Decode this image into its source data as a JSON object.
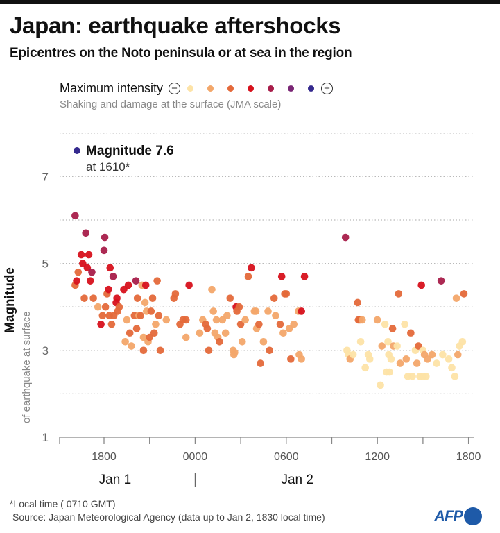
{
  "header": {
    "title": "Japan: earthquake aftershocks",
    "subtitle": "Epicentres on the Noto peninsula or at sea in the region"
  },
  "legend": {
    "title": "Maximum intensity",
    "minus_icon": "minus-circle-icon",
    "plus_icon": "plus-circle-icon",
    "note": "Shaking and damage at the surface (JMA scale)",
    "colors": [
      "#fde3a7",
      "#f3a76a",
      "#e4693a",
      "#d7111c",
      "#a81d4a",
      "#7a2675",
      "#352a8e"
    ]
  },
  "annotation": {
    "title": "Magnitude 7.6",
    "subtitle": "at 1610*",
    "color": "#352a8e"
  },
  "footer": {
    "footnote": "*Local time ( 0710 GMT)",
    "source": "Source: Japan Meteorological Agency (data up to Jan 2, 1830 local time)",
    "logo": "AFP"
  },
  "chart_data": {
    "type": "scatter",
    "title": "Japan: earthquake aftershocks",
    "ylabel": "Magnitude",
    "ylabel_sub": "of earthquake at surface",
    "xlabel": "",
    "ylim": [
      1,
      8
    ],
    "yticks": [
      1,
      3,
      5,
      7
    ],
    "ygrid": [
      2,
      3,
      4,
      5,
      6,
      7,
      8
    ],
    "xlim_hours": [
      15.2,
      42.6
    ],
    "x_unit": "hours since Jan 1 0000 local time",
    "xticks": [
      {
        "h": 15.333,
        "label": ""
      },
      {
        "h": 18,
        "label": "1800"
      },
      {
        "h": 21,
        "label": ""
      },
      {
        "h": 24,
        "label": "0000"
      },
      {
        "h": 27,
        "label": ""
      },
      {
        "h": 30,
        "label": "0600"
      },
      {
        "h": 33,
        "label": ""
      },
      {
        "h": 36,
        "label": "1200"
      },
      {
        "h": 39,
        "label": ""
      },
      {
        "h": 42,
        "label": "1800"
      }
    ],
    "day_labels": [
      {
        "h": 19.0,
        "label": "Jan 1"
      },
      {
        "h": 31.0,
        "label": "Jan 2"
      }
    ],
    "day_divider_h": 24,
    "grid": true,
    "legend_position": "top-left",
    "color_scale": "JMA maximum intensity, classes 1 (lowest) to 7 (highest)",
    "mainshock": {
      "time": "1610",
      "magnitude": 7.6,
      "intensity_class": 7
    },
    "points": [
      {
        "h": 16.1,
        "m": 6.1,
        "i": 5
      },
      {
        "h": 16.1,
        "m": 4.5,
        "i": 3
      },
      {
        "h": 16.2,
        "m": 4.6,
        "i": 4
      },
      {
        "h": 16.3,
        "m": 4.8,
        "i": 3
      },
      {
        "h": 16.5,
        "m": 5.2,
        "i": 4
      },
      {
        "h": 16.6,
        "m": 5.0,
        "i": 4
      },
      {
        "h": 16.7,
        "m": 4.2,
        "i": 3
      },
      {
        "h": 16.8,
        "m": 5.7,
        "i": 5
      },
      {
        "h": 16.9,
        "m": 4.9,
        "i": 4
      },
      {
        "h": 17.0,
        "m": 5.2,
        "i": 4
      },
      {
        "h": 17.1,
        "m": 4.6,
        "i": 4
      },
      {
        "h": 17.2,
        "m": 4.8,
        "i": 5
      },
      {
        "h": 17.3,
        "m": 4.2,
        "i": 3
      },
      {
        "h": 17.6,
        "m": 4.0,
        "i": 2
      },
      {
        "h": 17.8,
        "m": 3.6,
        "i": 4
      },
      {
        "h": 17.9,
        "m": 3.8,
        "i": 3
      },
      {
        "h": 18.0,
        "m": 5.3,
        "i": 5
      },
      {
        "h": 18.05,
        "m": 5.6,
        "i": 5
      },
      {
        "h": 18.1,
        "m": 4.0,
        "i": 3
      },
      {
        "h": 18.2,
        "m": 4.3,
        "i": 3
      },
      {
        "h": 18.3,
        "m": 4.4,
        "i": 4
      },
      {
        "h": 18.35,
        "m": 3.8,
        "i": 3
      },
      {
        "h": 18.4,
        "m": 4.9,
        "i": 4
      },
      {
        "h": 18.5,
        "m": 3.6,
        "i": 3
      },
      {
        "h": 18.6,
        "m": 4.7,
        "i": 5
      },
      {
        "h": 18.65,
        "m": 3.8,
        "i": 3
      },
      {
        "h": 18.8,
        "m": 4.1,
        "i": 4
      },
      {
        "h": 18.85,
        "m": 4.2,
        "i": 4
      },
      {
        "h": 18.9,
        "m": 3.9,
        "i": 3
      },
      {
        "h": 19.0,
        "m": 4.0,
        "i": 3
      },
      {
        "h": 19.3,
        "m": 4.4,
        "i": 4
      },
      {
        "h": 19.4,
        "m": 3.2,
        "i": 2
      },
      {
        "h": 19.5,
        "m": 3.7,
        "i": 2
      },
      {
        "h": 19.6,
        "m": 4.5,
        "i": 4
      },
      {
        "h": 19.7,
        "m": 3.4,
        "i": 3
      },
      {
        "h": 19.8,
        "m": 3.1,
        "i": 2
      },
      {
        "h": 20.0,
        "m": 3.8,
        "i": 3
      },
      {
        "h": 20.1,
        "m": 4.6,
        "i": 5
      },
      {
        "h": 20.15,
        "m": 3.5,
        "i": 3
      },
      {
        "h": 20.2,
        "m": 4.2,
        "i": 3
      },
      {
        "h": 20.3,
        "m": 3.8,
        "i": 2
      },
      {
        "h": 20.4,
        "m": 3.8,
        "i": 3
      },
      {
        "h": 20.5,
        "m": 4.5,
        "i": 2
      },
      {
        "h": 20.6,
        "m": 3.3,
        "i": 2
      },
      {
        "h": 20.6,
        "m": 3.0,
        "i": 3
      },
      {
        "h": 20.7,
        "m": 4.1,
        "i": 2
      },
      {
        "h": 20.75,
        "m": 4.5,
        "i": 4
      },
      {
        "h": 20.8,
        "m": 3.9,
        "i": 2
      },
      {
        "h": 20.9,
        "m": 3.2,
        "i": 2
      },
      {
        "h": 21.0,
        "m": 3.3,
        "i": 3
      },
      {
        "h": 21.1,
        "m": 3.9,
        "i": 3
      },
      {
        "h": 21.2,
        "m": 4.2,
        "i": 3
      },
      {
        "h": 21.3,
        "m": 3.4,
        "i": 3
      },
      {
        "h": 21.4,
        "m": 3.6,
        "i": 2
      },
      {
        "h": 21.5,
        "m": 4.6,
        "i": 3
      },
      {
        "h": 21.6,
        "m": 3.8,
        "i": 3
      },
      {
        "h": 21.7,
        "m": 3.0,
        "i": 3
      },
      {
        "h": 22.1,
        "m": 3.7,
        "i": 2
      },
      {
        "h": 22.6,
        "m": 4.2,
        "i": 3
      },
      {
        "h": 22.7,
        "m": 4.3,
        "i": 3
      },
      {
        "h": 23.0,
        "m": 3.6,
        "i": 3
      },
      {
        "h": 23.2,
        "m": 3.7,
        "i": 3
      },
      {
        "h": 23.4,
        "m": 3.7,
        "i": 3
      },
      {
        "h": 23.4,
        "m": 3.3,
        "i": 2
      },
      {
        "h": 23.6,
        "m": 4.5,
        "i": 4
      },
      {
        "h": 24.3,
        "m": 3.4,
        "i": 2
      },
      {
        "h": 24.5,
        "m": 3.7,
        "i": 2
      },
      {
        "h": 24.7,
        "m": 3.6,
        "i": 3
      },
      {
        "h": 24.8,
        "m": 3.5,
        "i": 3
      },
      {
        "h": 24.9,
        "m": 3.0,
        "i": 3
      },
      {
        "h": 25.1,
        "m": 4.4,
        "i": 2
      },
      {
        "h": 25.2,
        "m": 3.9,
        "i": 2
      },
      {
        "h": 25.3,
        "m": 3.4,
        "i": 2
      },
      {
        "h": 25.4,
        "m": 3.7,
        "i": 2
      },
      {
        "h": 25.5,
        "m": 3.3,
        "i": 2
      },
      {
        "h": 25.6,
        "m": 3.2,
        "i": 3
      },
      {
        "h": 25.8,
        "m": 3.7,
        "i": 2
      },
      {
        "h": 26.0,
        "m": 3.4,
        "i": 2
      },
      {
        "h": 26.1,
        "m": 3.8,
        "i": 2
      },
      {
        "h": 26.3,
        "m": 4.2,
        "i": 3
      },
      {
        "h": 26.5,
        "m": 3.0,
        "i": 2
      },
      {
        "h": 26.55,
        "m": 2.9,
        "i": 2
      },
      {
        "h": 26.6,
        "m": 2.95,
        "i": 2
      },
      {
        "h": 26.7,
        "m": 4.0,
        "i": 4
      },
      {
        "h": 26.75,
        "m": 3.9,
        "i": 3
      },
      {
        "h": 26.9,
        "m": 4.0,
        "i": 3
      },
      {
        "h": 27.0,
        "m": 3.6,
        "i": 3
      },
      {
        "h": 27.1,
        "m": 3.2,
        "i": 2
      },
      {
        "h": 27.3,
        "m": 3.7,
        "i": 2
      },
      {
        "h": 27.5,
        "m": 4.7,
        "i": 3
      },
      {
        "h": 27.7,
        "m": 4.9,
        "i": 4
      },
      {
        "h": 27.9,
        "m": 3.9,
        "i": 2
      },
      {
        "h": 28.0,
        "m": 3.9,
        "i": 2
      },
      {
        "h": 28.05,
        "m": 3.5,
        "i": 2
      },
      {
        "h": 28.2,
        "m": 3.6,
        "i": 3
      },
      {
        "h": 28.3,
        "m": 2.7,
        "i": 3
      },
      {
        "h": 28.5,
        "m": 3.2,
        "i": 2
      },
      {
        "h": 28.8,
        "m": 3.9,
        "i": 2
      },
      {
        "h": 28.9,
        "m": 3.0,
        "i": 3
      },
      {
        "h": 29.2,
        "m": 4.2,
        "i": 3
      },
      {
        "h": 29.3,
        "m": 3.8,
        "i": 2
      },
      {
        "h": 29.6,
        "m": 3.6,
        "i": 3
      },
      {
        "h": 29.7,
        "m": 4.7,
        "i": 4
      },
      {
        "h": 29.8,
        "m": 3.4,
        "i": 2
      },
      {
        "h": 29.9,
        "m": 4.3,
        "i": 3
      },
      {
        "h": 30.0,
        "m": 4.3,
        "i": 3
      },
      {
        "h": 30.2,
        "m": 3.5,
        "i": 2
      },
      {
        "h": 30.3,
        "m": 2.8,
        "i": 3
      },
      {
        "h": 30.5,
        "m": 3.6,
        "i": 2
      },
      {
        "h": 30.8,
        "m": 3.9,
        "i": 2
      },
      {
        "h": 30.85,
        "m": 2.9,
        "i": 2
      },
      {
        "h": 31.0,
        "m": 3.9,
        "i": 4
      },
      {
        "h": 31.0,
        "m": 2.8,
        "i": 2
      },
      {
        "h": 31.2,
        "m": 4.7,
        "i": 4
      },
      {
        "h": 33.9,
        "m": 5.6,
        "i": 5
      },
      {
        "h": 34.0,
        "m": 3.0,
        "i": 1
      },
      {
        "h": 34.1,
        "m": 2.9,
        "i": 1
      },
      {
        "h": 34.2,
        "m": 2.8,
        "i": 2
      },
      {
        "h": 34.4,
        "m": 2.9,
        "i": 1
      },
      {
        "h": 34.7,
        "m": 4.1,
        "i": 3
      },
      {
        "h": 34.75,
        "m": 3.7,
        "i": 3
      },
      {
        "h": 34.85,
        "m": 3.7,
        "i": 3
      },
      {
        "h": 34.9,
        "m": 3.2,
        "i": 1
      },
      {
        "h": 35.0,
        "m": 3.7,
        "i": 2
      },
      {
        "h": 35.2,
        "m": 2.6,
        "i": 1
      },
      {
        "h": 35.4,
        "m": 2.9,
        "i": 1
      },
      {
        "h": 35.5,
        "m": 2.8,
        "i": 1
      },
      {
        "h": 36.0,
        "m": 3.7,
        "i": 2
      },
      {
        "h": 36.2,
        "m": 2.2,
        "i": 1
      },
      {
        "h": 36.3,
        "m": 3.1,
        "i": 2
      },
      {
        "h": 36.5,
        "m": 3.6,
        "i": 1
      },
      {
        "h": 36.6,
        "m": 2.5,
        "i": 1
      },
      {
        "h": 36.7,
        "m": 3.2,
        "i": 1
      },
      {
        "h": 36.75,
        "m": 2.9,
        "i": 1
      },
      {
        "h": 36.8,
        "m": 2.5,
        "i": 1
      },
      {
        "h": 36.9,
        "m": 2.8,
        "i": 1
      },
      {
        "h": 37.0,
        "m": 3.5,
        "i": 3
      },
      {
        "h": 37.05,
        "m": 3.1,
        "i": 2
      },
      {
        "h": 37.3,
        "m": 3.1,
        "i": 1
      },
      {
        "h": 37.4,
        "m": 4.3,
        "i": 3
      },
      {
        "h": 37.5,
        "m": 2.7,
        "i": 2
      },
      {
        "h": 37.8,
        "m": 3.6,
        "i": 1
      },
      {
        "h": 37.9,
        "m": 2.8,
        "i": 2
      },
      {
        "h": 38.0,
        "m": 2.4,
        "i": 1
      },
      {
        "h": 38.2,
        "m": 3.4,
        "i": 3
      },
      {
        "h": 38.3,
        "m": 2.4,
        "i": 1
      },
      {
        "h": 38.5,
        "m": 3.0,
        "i": 1
      },
      {
        "h": 38.6,
        "m": 2.7,
        "i": 2
      },
      {
        "h": 38.7,
        "m": 3.1,
        "i": 3
      },
      {
        "h": 38.8,
        "m": 2.4,
        "i": 1
      },
      {
        "h": 38.9,
        "m": 4.5,
        "i": 4
      },
      {
        "h": 39.0,
        "m": 2.4,
        "i": 1
      },
      {
        "h": 39.0,
        "m": 3.0,
        "i": 1
      },
      {
        "h": 39.1,
        "m": 2.9,
        "i": 2
      },
      {
        "h": 39.2,
        "m": 2.4,
        "i": 1
      },
      {
        "h": 39.3,
        "m": 2.8,
        "i": 2
      },
      {
        "h": 39.6,
        "m": 2.9,
        "i": 2
      },
      {
        "h": 39.9,
        "m": 2.7,
        "i": 1
      },
      {
        "h": 40.2,
        "m": 4.6,
        "i": 5
      },
      {
        "h": 40.3,
        "m": 2.9,
        "i": 1
      },
      {
        "h": 40.7,
        "m": 2.8,
        "i": 1
      },
      {
        "h": 40.9,
        "m": 2.6,
        "i": 1
      },
      {
        "h": 41.1,
        "m": 2.4,
        "i": 1
      },
      {
        "h": 41.2,
        "m": 4.2,
        "i": 2
      },
      {
        "h": 41.3,
        "m": 2.9,
        "i": 2
      },
      {
        "h": 41.4,
        "m": 3.1,
        "i": 1
      },
      {
        "h": 41.6,
        "m": 3.2,
        "i": 1
      },
      {
        "h": 41.7,
        "m": 4.3,
        "i": 3
      }
    ]
  }
}
